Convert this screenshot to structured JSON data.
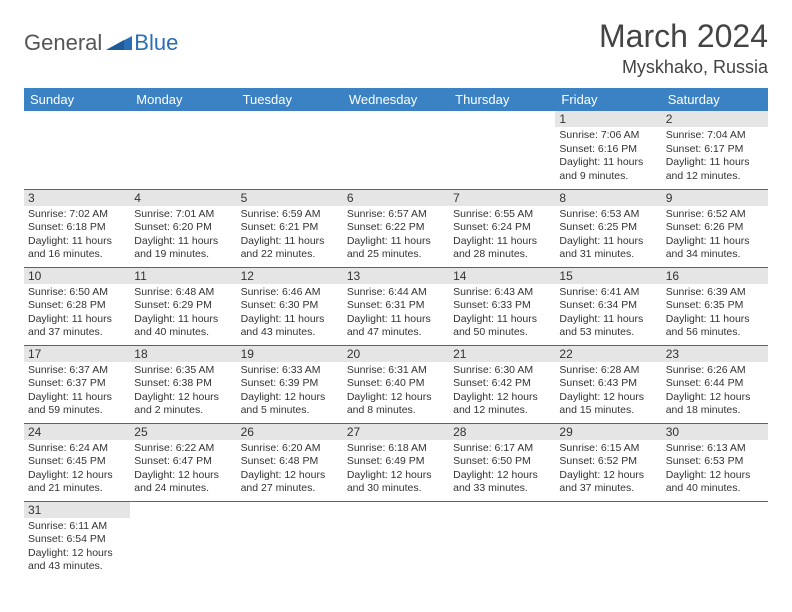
{
  "logo": {
    "text1": "General",
    "text2": "Blue"
  },
  "title": "March 2024",
  "location": "Myskhako, Russia",
  "weekdays": [
    "Sunday",
    "Monday",
    "Tuesday",
    "Wednesday",
    "Thursday",
    "Friday",
    "Saturday"
  ],
  "colors": {
    "header_bg": "#3b82c4",
    "header_text": "#ffffff",
    "daynum_bg": "#e5e5e5",
    "border": "#2a6fb5",
    "logo_blue": "#2a6fb5"
  },
  "fonts": {
    "title_size": 32,
    "location_size": 18,
    "weekday_size": 13,
    "cell_size": 10.5
  },
  "weeks": [
    [
      null,
      null,
      null,
      null,
      null,
      {
        "n": "1",
        "sr": "7:06 AM",
        "ss": "6:16 PM",
        "dl": "11 hours and 9 minutes."
      },
      {
        "n": "2",
        "sr": "7:04 AM",
        "ss": "6:17 PM",
        "dl": "11 hours and 12 minutes."
      }
    ],
    [
      {
        "n": "3",
        "sr": "7:02 AM",
        "ss": "6:18 PM",
        "dl": "11 hours and 16 minutes."
      },
      {
        "n": "4",
        "sr": "7:01 AM",
        "ss": "6:20 PM",
        "dl": "11 hours and 19 minutes."
      },
      {
        "n": "5",
        "sr": "6:59 AM",
        "ss": "6:21 PM",
        "dl": "11 hours and 22 minutes."
      },
      {
        "n": "6",
        "sr": "6:57 AM",
        "ss": "6:22 PM",
        "dl": "11 hours and 25 minutes."
      },
      {
        "n": "7",
        "sr": "6:55 AM",
        "ss": "6:24 PM",
        "dl": "11 hours and 28 minutes."
      },
      {
        "n": "8",
        "sr": "6:53 AM",
        "ss": "6:25 PM",
        "dl": "11 hours and 31 minutes."
      },
      {
        "n": "9",
        "sr": "6:52 AM",
        "ss": "6:26 PM",
        "dl": "11 hours and 34 minutes."
      }
    ],
    [
      {
        "n": "10",
        "sr": "6:50 AM",
        "ss": "6:28 PM",
        "dl": "11 hours and 37 minutes."
      },
      {
        "n": "11",
        "sr": "6:48 AM",
        "ss": "6:29 PM",
        "dl": "11 hours and 40 minutes."
      },
      {
        "n": "12",
        "sr": "6:46 AM",
        "ss": "6:30 PM",
        "dl": "11 hours and 43 minutes."
      },
      {
        "n": "13",
        "sr": "6:44 AM",
        "ss": "6:31 PM",
        "dl": "11 hours and 47 minutes."
      },
      {
        "n": "14",
        "sr": "6:43 AM",
        "ss": "6:33 PM",
        "dl": "11 hours and 50 minutes."
      },
      {
        "n": "15",
        "sr": "6:41 AM",
        "ss": "6:34 PM",
        "dl": "11 hours and 53 minutes."
      },
      {
        "n": "16",
        "sr": "6:39 AM",
        "ss": "6:35 PM",
        "dl": "11 hours and 56 minutes."
      }
    ],
    [
      {
        "n": "17",
        "sr": "6:37 AM",
        "ss": "6:37 PM",
        "dl": "11 hours and 59 minutes."
      },
      {
        "n": "18",
        "sr": "6:35 AM",
        "ss": "6:38 PM",
        "dl": "12 hours and 2 minutes."
      },
      {
        "n": "19",
        "sr": "6:33 AM",
        "ss": "6:39 PM",
        "dl": "12 hours and 5 minutes."
      },
      {
        "n": "20",
        "sr": "6:31 AM",
        "ss": "6:40 PM",
        "dl": "12 hours and 8 minutes."
      },
      {
        "n": "21",
        "sr": "6:30 AM",
        "ss": "6:42 PM",
        "dl": "12 hours and 12 minutes."
      },
      {
        "n": "22",
        "sr": "6:28 AM",
        "ss": "6:43 PM",
        "dl": "12 hours and 15 minutes."
      },
      {
        "n": "23",
        "sr": "6:26 AM",
        "ss": "6:44 PM",
        "dl": "12 hours and 18 minutes."
      }
    ],
    [
      {
        "n": "24",
        "sr": "6:24 AM",
        "ss": "6:45 PM",
        "dl": "12 hours and 21 minutes."
      },
      {
        "n": "25",
        "sr": "6:22 AM",
        "ss": "6:47 PM",
        "dl": "12 hours and 24 minutes."
      },
      {
        "n": "26",
        "sr": "6:20 AM",
        "ss": "6:48 PM",
        "dl": "12 hours and 27 minutes."
      },
      {
        "n": "27",
        "sr": "6:18 AM",
        "ss": "6:49 PM",
        "dl": "12 hours and 30 minutes."
      },
      {
        "n": "28",
        "sr": "6:17 AM",
        "ss": "6:50 PM",
        "dl": "12 hours and 33 minutes."
      },
      {
        "n": "29",
        "sr": "6:15 AM",
        "ss": "6:52 PM",
        "dl": "12 hours and 37 minutes."
      },
      {
        "n": "30",
        "sr": "6:13 AM",
        "ss": "6:53 PM",
        "dl": "12 hours and 40 minutes."
      }
    ],
    [
      {
        "n": "31",
        "sr": "6:11 AM",
        "ss": "6:54 PM",
        "dl": "12 hours and 43 minutes."
      },
      null,
      null,
      null,
      null,
      null,
      null
    ]
  ],
  "labels": {
    "sunrise": "Sunrise:",
    "sunset": "Sunset:",
    "daylight": "Daylight:"
  }
}
